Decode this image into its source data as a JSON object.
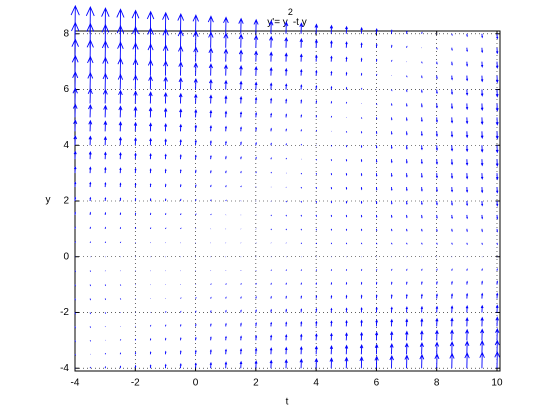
{
  "chart_data": {
    "type": "quiver",
    "title": [
      "y'= y",
      "2",
      "-t y"
    ],
    "xlabel": "t",
    "ylabel": "y",
    "color": "#0000ff",
    "grid": true,
    "xlim": [
      -4,
      10.1
    ],
    "ylim": [
      -4.1,
      8.1
    ],
    "xticks": [
      -4,
      -2,
      0,
      2,
      4,
      6,
      8,
      10
    ],
    "yticks": [
      -4,
      -2,
      0,
      2,
      4,
      6,
      8
    ],
    "x": [
      -4,
      -3.5,
      -3,
      -2.5,
      -2,
      -1.5,
      -1,
      -0.5,
      0,
      0.5,
      1,
      1.5,
      2,
      2.5,
      3,
      3.5,
      4,
      4.5,
      5,
      5.5,
      6,
      6.5,
      7,
      7.5,
      8,
      8.5,
      9,
      9.5,
      10
    ],
    "y": [
      -4,
      -3.5,
      -3,
      -2.5,
      -2,
      -1.5,
      -1,
      -0.5,
      0,
      0.5,
      1,
      1.5,
      2,
      2.5,
      3,
      3.5,
      4,
      4.5,
      5,
      5.5,
      6,
      6.5,
      7,
      7.5,
      8
    ],
    "values": [
      [
        0,
        2,
        4,
        6,
        8,
        10,
        12,
        14,
        16,
        18,
        20,
        22,
        24,
        26,
        28,
        30,
        32,
        34,
        36,
        38,
        40,
        42,
        44,
        46,
        48,
        50,
        52,
        54,
        56
      ],
      [
        -1.75,
        0,
        1.75,
        3.5,
        5.25,
        7,
        8.75,
        10.5,
        12.25,
        14,
        15.75,
        17.5,
        19.25,
        21,
        22.75,
        24.5,
        26.25,
        28,
        29.75,
        31.5,
        33.25,
        35,
        36.75,
        38.5,
        40.25,
        42,
        43.75,
        45.5,
        47.25
      ],
      [
        -3,
        -1.5,
        0,
        1.5,
        3,
        4.5,
        6,
        7.5,
        9,
        10.5,
        12,
        13.5,
        15,
        16.5,
        18,
        19.5,
        21,
        22.5,
        24,
        25.5,
        27,
        28.5,
        30,
        31.5,
        33,
        34.5,
        36,
        37.5,
        39
      ],
      [
        -3.75,
        -2.5,
        -1.25,
        0,
        1.25,
        2.5,
        3.75,
        5,
        6.25,
        7.5,
        8.75,
        10,
        11.25,
        12.5,
        13.75,
        15,
        16.25,
        17.5,
        18.75,
        20,
        21.25,
        22.5,
        23.75,
        25,
        26.25,
        27.5,
        28.75,
        30,
        31.25
      ],
      [
        -4,
        -3,
        -2,
        -1,
        0,
        1,
        2,
        3,
        4,
        5,
        6,
        7,
        8,
        9,
        10,
        11,
        12,
        13,
        14,
        15,
        16,
        17,
        18,
        19,
        20,
        21,
        22,
        23,
        24
      ],
      [
        -3.75,
        -3,
        -2.25,
        -1.5,
        -0.75,
        0,
        0.75,
        1.5,
        2.25,
        3,
        3.75,
        4.5,
        5.25,
        6,
        6.75,
        7.5,
        8.25,
        9,
        9.75,
        10.5,
        11.25,
        12,
        12.75,
        13.5,
        14.25,
        15,
        15.75,
        16.5,
        17.25
      ],
      [
        -3,
        -2.5,
        -2,
        -1.5,
        -1,
        -0.5,
        0,
        0.5,
        1,
        1.5,
        2,
        2.5,
        3,
        3.5,
        4,
        4.5,
        5,
        5.5,
        6,
        6.5,
        7,
        7.5,
        8,
        8.5,
        9,
        9.5,
        10,
        10.5,
        11
      ],
      [
        -1.75,
        -1.5,
        -1.25,
        -1,
        -0.75,
        -0.5,
        -0.25,
        0,
        0.25,
        0.5,
        0.75,
        1,
        1.25,
        1.5,
        1.75,
        2,
        2.25,
        2.5,
        2.75,
        3,
        3.25,
        3.5,
        3.75,
        4,
        4.25,
        4.5,
        4.75,
        5,
        5.25
      ],
      [
        0,
        0,
        0,
        0,
        0,
        0,
        0,
        0,
        0,
        0,
        0,
        0,
        0,
        0,
        0,
        0,
        0,
        0,
        0,
        0,
        0,
        0,
        0,
        0,
        0,
        0,
        0,
        0,
        0
      ],
      [
        2.25,
        2,
        1.75,
        1.5,
        1.25,
        1,
        0.75,
        0.5,
        0.25,
        0,
        -0.25,
        -0.5,
        -0.75,
        -1,
        -1.25,
        -1.5,
        -1.75,
        -2,
        -2.25,
        -2.5,
        -2.75,
        -3,
        -3.25,
        -3.5,
        -3.75,
        -4,
        -4.25,
        -4.5,
        -4.75
      ],
      [
        5,
        4.5,
        4,
        3.5,
        3,
        2.5,
        2,
        1.5,
        1,
        0.5,
        0,
        -0.5,
        -1,
        -1.5,
        -2,
        -2.5,
        -3,
        -3.5,
        -4,
        -4.5,
        -5,
        -5.5,
        -6,
        -6.5,
        -7,
        -7.5,
        -8,
        -8.5,
        -9
      ],
      [
        8.25,
        7.5,
        6.75,
        6,
        5.25,
        4.5,
        3.75,
        3,
        2.25,
        1.5,
        0.75,
        0,
        -0.75,
        -1.5,
        -2.25,
        -3,
        -3.75,
        -4.5,
        -5.25,
        -6,
        -6.75,
        -7.5,
        -8.25,
        -9,
        -9.75,
        -10.5,
        -11.25,
        -12,
        -12.75
      ],
      [
        12,
        11,
        10,
        9,
        8,
        7,
        6,
        5,
        4,
        3,
        2,
        1,
        0,
        -1,
        -2,
        -3,
        -4,
        -5,
        -6,
        -7,
        -8,
        -9,
        -10,
        -11,
        -12,
        -13,
        -14,
        -15,
        -16
      ],
      [
        16.25,
        15,
        13.75,
        12.5,
        11.25,
        10,
        8.75,
        7.5,
        6.25,
        5,
        3.75,
        2.5,
        1.25,
        0,
        -1.25,
        -2.5,
        -3.75,
        -5,
        -6.25,
        -7.5,
        -8.75,
        -10,
        -11.25,
        -12.5,
        -13.75,
        -15,
        -16.25,
        -17.5,
        -18.75
      ],
      [
        21,
        19.5,
        18,
        16.5,
        15,
        13.5,
        12,
        10.5,
        9,
        7.5,
        6,
        4.5,
        3,
        1.5,
        0,
        -1.5,
        -3,
        -4.5,
        -6,
        -7.5,
        -9,
        -10.5,
        -12,
        -13.5,
        -15,
        -16.5,
        -18,
        -19.5,
        -21
      ],
      [
        26.25,
        24.5,
        22.75,
        21,
        19.25,
        17.5,
        15.75,
        14,
        12.25,
        10.5,
        8.75,
        7,
        5.25,
        3.5,
        1.75,
        0,
        -1.75,
        -3.5,
        -5.25,
        -7,
        -8.75,
        -10.5,
        -12.25,
        -14,
        -15.75,
        -17.5,
        -19.25,
        -21,
        -22.75
      ],
      [
        32,
        30,
        28,
        26,
        24,
        22,
        20,
        18,
        16,
        14,
        12,
        10,
        8,
        6,
        4,
        2,
        0,
        -2,
        -4,
        -6,
        -8,
        -10,
        -12,
        -14,
        -16,
        -18,
        -20,
        -22,
        -24
      ],
      [
        38.25,
        36,
        33.75,
        31.5,
        29.25,
        27,
        24.75,
        22.5,
        20.25,
        18,
        15.75,
        13.5,
        11.25,
        9,
        6.75,
        4.5,
        2.25,
        0,
        -2.25,
        -4.5,
        -6.75,
        -9,
        -11.25,
        -13.5,
        -15.75,
        -18,
        -20.25,
        -22.5,
        -24.75
      ],
      [
        45,
        42.5,
        40,
        37.5,
        35,
        32.5,
        30,
        27.5,
        25,
        22.5,
        20,
        17.5,
        15,
        12.5,
        10,
        7.5,
        5,
        2.5,
        0,
        -2.5,
        -5,
        -7.5,
        -10,
        -12.5,
        -15,
        -17.5,
        -20,
        -22.5,
        -25
      ],
      [
        52.25,
        49.5,
        46.75,
        44,
        41.25,
        38.5,
        35.75,
        33,
        30.25,
        27.5,
        24.75,
        22,
        19.25,
        16.5,
        13.75,
        11,
        8.25,
        5.5,
        2.75,
        0,
        -2.75,
        -5.5,
        -8.25,
        -11,
        -13.75,
        -16.5,
        -19.25,
        -22,
        -24.75
      ],
      [
        60,
        57,
        54,
        51,
        48,
        45,
        42,
        39,
        36,
        33,
        30,
        27,
        24,
        21,
        18,
        15,
        12,
        9,
        6,
        3,
        0,
        -3,
        -6,
        -9,
        -12,
        -15,
        -18,
        -21,
        -24
      ],
      [
        68.25,
        65,
        61.75,
        58.5,
        55.25,
        52,
        48.75,
        45.5,
        42.25,
        39,
        35.75,
        32.5,
        29.25,
        26,
        22.75,
        19.5,
        16.25,
        13,
        9.75,
        6.5,
        3.25,
        0,
        -3.25,
        -6.5,
        -9.75,
        -13,
        -16.25,
        -19.5,
        -22.75
      ],
      [
        77,
        73.5,
        70,
        66.5,
        63,
        59.5,
        56,
        52.5,
        49,
        45.5,
        42,
        38.5,
        35,
        31.5,
        28,
        24.5,
        21,
        17.5,
        14,
        10.5,
        7,
        3.5,
        0,
        -3.5,
        -7,
        -10.5,
        -14,
        -17.5,
        -21
      ],
      [
        86.25,
        82.5,
        78.75,
        75,
        71.25,
        67.5,
        63.75,
        60,
        56.25,
        52.5,
        48.75,
        45,
        41.25,
        37.5,
        33.75,
        30,
        26.25,
        22.5,
        18.75,
        15,
        11.25,
        7.5,
        3.75,
        0,
        -3.75,
        -7.5,
        -11.25,
        -15,
        -18.75
      ],
      [
        96,
        92,
        88,
        84,
        80,
        76,
        72,
        68,
        64,
        60,
        56,
        52,
        48,
        44,
        40,
        36,
        32,
        28,
        24,
        20,
        16,
        12,
        8,
        4,
        0,
        -4,
        -8,
        -12,
        -16
      ]
    ]
  }
}
